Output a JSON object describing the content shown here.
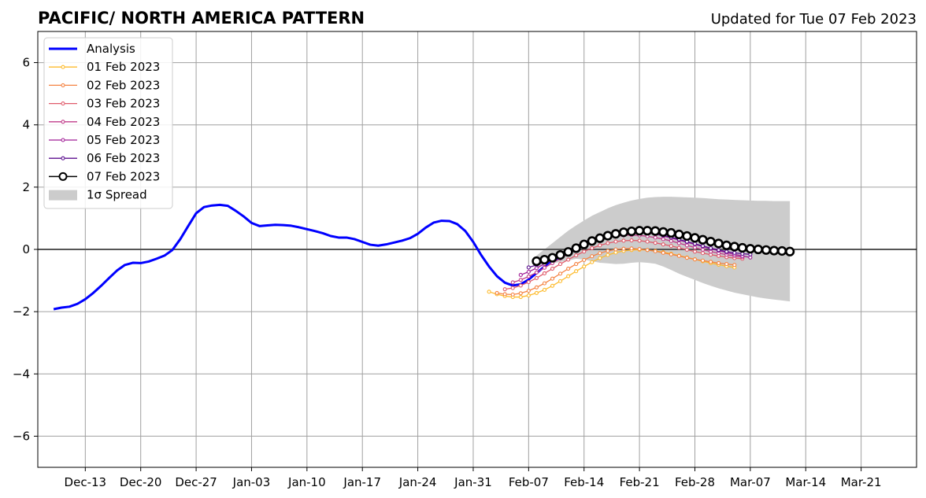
{
  "title": "PACIFIC/ NORTH AMERICA PATTERN",
  "subtitle": "Updated for Tue 07 Feb 2023",
  "chart_data": {
    "type": "line",
    "x_type": "date",
    "xlim": [
      "2022-12-07",
      "2023-03-28"
    ],
    "ylim": [
      -7,
      7
    ],
    "x_ticks": [
      {
        "date": "2022-12-13",
        "label": "Dec-13"
      },
      {
        "date": "2022-12-20",
        "label": "Dec-20"
      },
      {
        "date": "2022-12-27",
        "label": "Dec-27"
      },
      {
        "date": "2023-01-03",
        "label": "Jan-03"
      },
      {
        "date": "2023-01-10",
        "label": "Jan-10"
      },
      {
        "date": "2023-01-17",
        "label": "Jan-17"
      },
      {
        "date": "2023-01-24",
        "label": "Jan-24"
      },
      {
        "date": "2023-01-31",
        "label": "Jan-31"
      },
      {
        "date": "2023-02-07",
        "label": "Feb-07"
      },
      {
        "date": "2023-02-14",
        "label": "Feb-14"
      },
      {
        "date": "2023-02-21",
        "label": "Feb-21"
      },
      {
        "date": "2023-02-28",
        "label": "Feb-28"
      },
      {
        "date": "2023-03-07",
        "label": "Mar-07"
      },
      {
        "date": "2023-03-14",
        "label": "Mar-14"
      },
      {
        "date": "2023-03-21",
        "label": "Mar-21"
      }
    ],
    "y_ticks": [
      {
        "value": -6,
        "label": "−6"
      },
      {
        "value": -4,
        "label": "−4"
      },
      {
        "value": -2,
        "label": "−2"
      },
      {
        "value": 0,
        "label": "0"
      },
      {
        "value": 2,
        "label": "2"
      },
      {
        "value": 4,
        "label": "4"
      },
      {
        "value": 6,
        "label": "6"
      }
    ],
    "grid": true,
    "legend_position": "upper-left",
    "analysis": {
      "name": "Analysis",
      "color": "#0000ff",
      "start_date": "2022-12-09",
      "values": [
        -1.92,
        -1.87,
        -1.84,
        -1.75,
        -1.6,
        -1.4,
        -1.17,
        -0.92,
        -0.68,
        -0.5,
        -0.43,
        -0.44,
        -0.39,
        -0.3,
        -0.2,
        -0.02,
        0.33,
        0.75,
        1.16,
        1.36,
        1.41,
        1.43,
        1.4,
        1.24,
        1.06,
        0.85,
        0.75,
        0.77,
        0.79,
        0.78,
        0.76,
        0.71,
        0.65,
        0.59,
        0.52,
        0.43,
        0.38,
        0.38,
        0.33,
        0.24,
        0.15,
        0.12,
        0.16,
        0.22,
        0.28,
        0.36,
        0.5,
        0.7,
        0.86,
        0.92,
        0.91,
        0.81,
        0.59,
        0.24,
        -0.18,
        -0.55,
        -0.86,
        -1.07,
        -1.16,
        -1.12,
        -0.97,
        -0.76,
        -0.55,
        -0.33,
        -0.28
      ]
    },
    "forecasts": [
      {
        "name": "01 Feb 2023",
        "color": "#fdbb2d",
        "start_date": "2023-02-02",
        "values": [
          -1.36,
          -1.44,
          -1.5,
          -1.53,
          -1.53,
          -1.48,
          -1.4,
          -1.3,
          -1.17,
          -1.02,
          -0.86,
          -0.7,
          -0.55,
          -0.41,
          -0.28,
          -0.18,
          -0.1,
          -0.05,
          -0.02,
          -0.01,
          -0.02,
          -0.05,
          -0.09,
          -0.14,
          -0.2,
          -0.26,
          -0.32,
          -0.38,
          -0.44,
          -0.49,
          -0.54,
          -0.58
        ]
      },
      {
        "name": "02 Feb 2023",
        "color": "#f58342",
        "start_date": "2023-02-03",
        "values": [
          -1.4,
          -1.44,
          -1.45,
          -1.41,
          -1.33,
          -1.22,
          -1.09,
          -0.94,
          -0.78,
          -0.62,
          -0.47,
          -0.34,
          -0.22,
          -0.12,
          -0.05,
          0.0,
          0.02,
          0.03,
          0.01,
          -0.02,
          -0.06,
          -0.11,
          -0.16,
          -0.21,
          -0.27,
          -0.32,
          -0.36,
          -0.4,
          -0.44,
          -0.47,
          -0.5
        ]
      },
      {
        "name": "03 Feb 2023",
        "color": "#e05b6b",
        "start_date": "2023-02-04",
        "values": [
          -1.28,
          -1.24,
          -1.16,
          -1.05,
          -0.92,
          -0.77,
          -0.62,
          -0.47,
          -0.33,
          -0.19,
          -0.07,
          0.04,
          0.13,
          0.2,
          0.25,
          0.28,
          0.29,
          0.28,
          0.25,
          0.21,
          0.16,
          0.11,
          0.05,
          -0.01,
          -0.07,
          -0.12,
          -0.17,
          -0.21,
          -0.25,
          -0.28,
          -0.3
        ]
      },
      {
        "name": "04 Feb 2023",
        "color": "#c13b8a",
        "start_date": "2023-02-05",
        "values": [
          -1.06,
          -0.98,
          -0.87,
          -0.74,
          -0.59,
          -0.44,
          -0.29,
          -0.15,
          -0.02,
          0.1,
          0.21,
          0.3,
          0.37,
          0.42,
          0.45,
          0.46,
          0.45,
          0.42,
          0.38,
          0.33,
          0.27,
          0.2,
          0.13,
          0.06,
          -0.01,
          -0.07,
          -0.12,
          -0.17,
          -0.21,
          -0.25
        ]
      },
      {
        "name": "05 Feb 2023",
        "color": "#a11d96",
        "start_date": "2023-02-06",
        "values": [
          -0.82,
          -0.72,
          -0.6,
          -0.47,
          -0.33,
          -0.19,
          -0.05,
          0.08,
          0.2,
          0.31,
          0.41,
          0.48,
          0.53,
          0.56,
          0.57,
          0.56,
          0.53,
          0.49,
          0.43,
          0.37,
          0.3,
          0.23,
          0.16,
          0.09,
          0.02,
          -0.04,
          -0.1,
          -0.16,
          -0.21,
          -0.26
        ]
      },
      {
        "name": "06 Feb 2023",
        "color": "#5b0f8f",
        "start_date": "2023-02-07",
        "values": [
          -0.58,
          -0.5,
          -0.4,
          -0.28,
          -0.15,
          -0.02,
          0.11,
          0.23,
          0.34,
          0.43,
          0.5,
          0.55,
          0.58,
          0.59,
          0.58,
          0.55,
          0.51,
          0.45,
          0.39,
          0.32,
          0.25,
          0.18,
          0.11,
          0.04,
          -0.02,
          -0.07,
          -0.11,
          -0.14,
          -0.16
        ]
      },
      {
        "name": "07 Feb 2023",
        "color": "#000000",
        "start_date": "2023-02-08",
        "values": [
          -0.38,
          -0.33,
          -0.27,
          -0.18,
          -0.08,
          0.04,
          0.16,
          0.27,
          0.36,
          0.44,
          0.5,
          0.55,
          0.58,
          0.6,
          0.6,
          0.59,
          0.56,
          0.53,
          0.48,
          0.43,
          0.37,
          0.31,
          0.25,
          0.19,
          0.13,
          0.09,
          0.05,
          0.02,
          0.0,
          -0.02,
          -0.04,
          -0.05,
          -0.07
        ]
      }
    ],
    "spread": {
      "name": "1σ Spread",
      "color": "#cccccc",
      "start_date": "2023-02-08",
      "upper": [
        -0.2,
        0.0,
        0.2,
        0.4,
        0.6,
        0.77,
        0.93,
        1.08,
        1.2,
        1.32,
        1.42,
        1.5,
        1.57,
        1.62,
        1.66,
        1.68,
        1.69,
        1.69,
        1.68,
        1.67,
        1.66,
        1.65,
        1.63,
        1.61,
        1.6,
        1.59,
        1.58,
        1.57,
        1.56,
        1.56,
        1.55,
        1.55,
        1.55
      ],
      "lower": [
        -0.55,
        -0.5,
        -0.45,
        -0.4,
        -0.36,
        -0.3,
        -0.33,
        -0.38,
        -0.43,
        -0.45,
        -0.47,
        -0.46,
        -0.43,
        -0.41,
        -0.43,
        -0.46,
        -0.55,
        -0.66,
        -0.78,
        -0.88,
        -0.98,
        -1.08,
        -1.17,
        -1.25,
        -1.32,
        -1.39,
        -1.44,
        -1.49,
        -1.54,
        -1.58,
        -1.61,
        -1.64,
        -1.67
      ]
    },
    "legend": [
      {
        "label": "Analysis",
        "kind": "analysis",
        "color": "#0000ff"
      },
      {
        "label": "01 Feb 2023",
        "kind": "forecast",
        "color": "#fdbb2d"
      },
      {
        "label": "02 Feb 2023",
        "kind": "forecast",
        "color": "#f58342"
      },
      {
        "label": "03 Feb 2023",
        "kind": "forecast",
        "color": "#e05b6b"
      },
      {
        "label": "04 Feb 2023",
        "kind": "forecast",
        "color": "#c13b8a"
      },
      {
        "label": "05 Feb 2023",
        "kind": "forecast",
        "color": "#a11d96"
      },
      {
        "label": "06 Feb 2023",
        "kind": "forecast",
        "color": "#5b0f8f"
      },
      {
        "label": "07 Feb 2023",
        "kind": "latest",
        "color": "#000000"
      },
      {
        "label": "1σ Spread",
        "kind": "spread",
        "color": "#cccccc"
      }
    ]
  }
}
